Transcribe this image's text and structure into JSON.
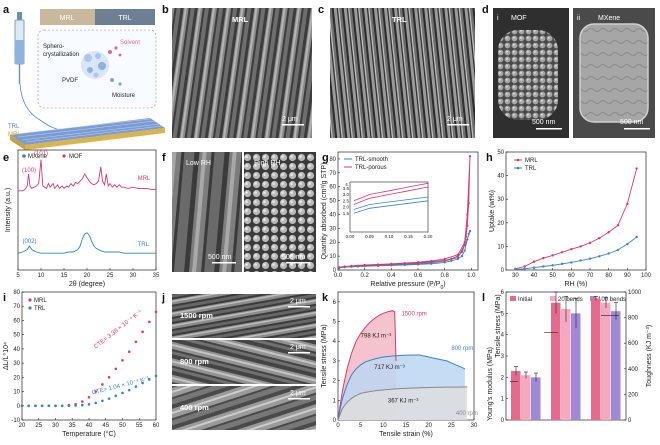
{
  "panels": {
    "a": {
      "label": "a",
      "strip_labels": [
        "MRL",
        "TRL"
      ],
      "process_label_1": "Sphero-",
      "process_label_2": "crystallization",
      "polymer": "PVDF",
      "solvent": "Solvent",
      "moisture": "Moisture",
      "layer_top": "TRL",
      "layer_bottom": "MRL",
      "colors": {
        "mrl": "#c8a23c",
        "trl": "#5a7ec8",
        "solvent": "#d46aa0"
      }
    },
    "b": {
      "label": "b",
      "title": "MRL",
      "scale": "2 μm"
    },
    "c": {
      "label": "c",
      "title": "TRL",
      "scale": "2 μm"
    },
    "d": {
      "label": "d",
      "sub_i": "i",
      "sub_ii": "ii",
      "title_i": "MOF",
      "title_ii": "MXene",
      "scale_i": "500 nm",
      "scale_ii": "500 nm"
    },
    "f": {
      "label": "f",
      "title_left": "Low RH",
      "title_right": "High RH",
      "scale_left": "500 nm",
      "scale_right": "500 nm"
    },
    "j": {
      "label": "j",
      "rows": [
        "1500 rpm",
        "800 rpm",
        "400 rpm"
      ],
      "scales": [
        "2 μm",
        "2 μm",
        "2 μm"
      ]
    }
  },
  "chart_data": [
    {
      "panel": "e",
      "type": "line",
      "xlabel": "2θ (degree)",
      "ylabel": "Intensity (a.u.)",
      "xlim": [
        5,
        35
      ],
      "xticks": [
        5,
        10,
        15,
        20,
        25,
        30,
        35
      ],
      "legend": [
        "MXene",
        "MOF"
      ],
      "legend_colors": [
        "#3b82c4",
        "#d63a6a"
      ],
      "series": [
        {
          "name": "MRL",
          "color": "#d63a6a",
          "x": [
            5,
            6,
            6.5,
            7,
            7.3,
            7.6,
            8,
            8.5,
            9,
            9.5,
            10,
            10.4,
            10.8,
            11.2,
            11.6,
            12,
            12.6,
            13,
            13.6,
            14,
            14.6,
            15,
            15.6,
            16,
            16.5,
            17,
            17.5,
            18,
            18.5,
            19,
            19.5,
            20,
            20.5,
            21,
            21.5,
            22,
            22.5,
            23,
            23.4,
            23.8,
            24.2,
            24.6,
            25,
            25.5,
            26,
            26.5,
            27,
            27.5,
            28,
            29,
            30,
            31,
            32,
            33,
            34,
            35
          ],
          "y": [
            0.66,
            0.66,
            0.67,
            0.7,
            0.8,
            0.7,
            0.68,
            0.69,
            0.7,
            0.72,
            0.92,
            0.7,
            0.69,
            0.68,
            0.72,
            0.69,
            0.72,
            0.68,
            0.71,
            0.68,
            0.7,
            0.68,
            0.7,
            0.69,
            0.72,
            0.7,
            0.73,
            0.72,
            0.74,
            0.76,
            0.8,
            0.77,
            0.74,
            0.72,
            0.71,
            0.72,
            0.74,
            0.86,
            0.74,
            0.71,
            0.8,
            0.7,
            0.72,
            0.69,
            0.71,
            0.69,
            0.71,
            0.69,
            0.69,
            0.68,
            0.69,
            0.68,
            0.68,
            0.68,
            0.67,
            0.67
          ]
        },
        {
          "name": "TRL",
          "color": "#3b82c4",
          "x": [
            5,
            6,
            7,
            7.5,
            8,
            8.5,
            9,
            10,
            11,
            12,
            13,
            14,
            15,
            16,
            17,
            18,
            18.5,
            19,
            19.5,
            20,
            20.5,
            21,
            21.5,
            22,
            23,
            24,
            25,
            26,
            27,
            28,
            29,
            30,
            31,
            32,
            33,
            34,
            35
          ],
          "y": [
            0.14,
            0.15,
            0.17,
            0.2,
            0.17,
            0.16,
            0.15,
            0.14,
            0.14,
            0.14,
            0.14,
            0.14,
            0.14,
            0.15,
            0.15,
            0.17,
            0.2,
            0.26,
            0.3,
            0.31,
            0.29,
            0.24,
            0.2,
            0.18,
            0.16,
            0.15,
            0.15,
            0.15,
            0.15,
            0.14,
            0.14,
            0.14,
            0.14,
            0.14,
            0.14,
            0.14,
            0.14
          ]
        }
      ],
      "series_labels": [
        "MRL",
        "TRL"
      ],
      "annotations": [
        {
          "text": "(101)",
          "x": 10,
          "y": 0.94,
          "color": "#d63a6a"
        },
        {
          "text": "(100)",
          "x": 7.4,
          "y": 0.8,
          "color": "#d63a6a"
        },
        {
          "text": "(002)",
          "x": 7.5,
          "y": 0.21,
          "color": "#3b82c4"
        }
      ]
    },
    {
      "panel": "g",
      "type": "line",
      "xlabel": "Relative pressure (P/P",
      "xlabel_sub": "0",
      "xlabel_end": ")",
      "ylabel": "Quantity absorbed (cm³/g STP)",
      "xlim": [
        0,
        1.05
      ],
      "ylim": [
        0,
        85
      ],
      "xticks": [
        0.0,
        0.2,
        0.4,
        0.6,
        0.8,
        1.0
      ],
      "yticks": [
        0,
        10,
        20,
        30,
        40,
        50,
        60,
        70,
        80
      ],
      "legend": [
        "TRL-smooth",
        "TRL-porous"
      ],
      "series": [
        {
          "name": "TRL-smooth",
          "color": "#3b82c4",
          "x": [
            0.01,
            0.05,
            0.1,
            0.15,
            0.2,
            0.3,
            0.4,
            0.5,
            0.6,
            0.7,
            0.8,
            0.85,
            0.9,
            0.93,
            0.95,
            0.97,
            0.98,
            0.99,
            0.99,
            0.97,
            0.9,
            0.8,
            0.7,
            0.6,
            0.5,
            0.4,
            0.3,
            0.2,
            0.1
          ],
          "y": [
            1.5,
            2,
            2.3,
            2.5,
            2.7,
            3,
            3.3,
            3.6,
            4,
            4.5,
            5.5,
            6.5,
            8,
            10,
            14,
            22,
            26,
            28,
            28,
            22,
            9,
            6.5,
            5.2,
            4.5,
            4,
            3.6,
            3.3,
            3,
            2.5
          ]
        },
        {
          "name": "TRL-porous",
          "color": "#d63a6a",
          "x": [
            0.01,
            0.05,
            0.1,
            0.15,
            0.2,
            0.3,
            0.4,
            0.5,
            0.6,
            0.7,
            0.8,
            0.85,
            0.9,
            0.93,
            0.95,
            0.96,
            0.97,
            0.98,
            0.99,
            0.99,
            0.97,
            0.95,
            0.9,
            0.8,
            0.7,
            0.6,
            0.5,
            0.4,
            0.3,
            0.2,
            0.1
          ],
          "y": [
            2,
            2.5,
            2.8,
            3,
            3.2,
            3.6,
            4,
            4.5,
            5,
            5.8,
            7,
            8,
            10,
            13,
            18,
            24,
            32,
            48,
            82,
            82,
            40,
            20,
            11,
            8,
            6.5,
            5.6,
            5,
            4.5,
            4,
            3.6,
            3
          ]
        }
      ],
      "inset": {
        "xlim": [
          0,
          0.2
        ],
        "ylim": [
          0,
          4
        ],
        "xticks": [
          0.0,
          0.05,
          0.1,
          0.15,
          0.2
        ],
        "yticks": [
          1.5,
          2.0,
          2.5,
          3.0,
          3.5
        ],
        "extra_label": "4.",
        "series": [
          {
            "color": "#3b82c4",
            "x": [
              0.01,
              0.05,
              0.1,
              0.15,
              0.2
            ],
            "y": [
              1.5,
              1.9,
              2.1,
              2.3,
              2.5
            ]
          },
          {
            "color": "#3b82c4",
            "x": [
              0.01,
              0.05,
              0.1,
              0.15,
              0.2
            ],
            "y": [
              1.8,
              2.2,
              2.4,
              2.6,
              2.8
            ]
          },
          {
            "color": "#d63a6a",
            "x": [
              0.01,
              0.05,
              0.1,
              0.15,
              0.2
            ],
            "y": [
              2.2,
              2.7,
              3.0,
              3.3,
              3.6
            ]
          },
          {
            "color": "#d63a6a",
            "x": [
              0.01,
              0.05,
              0.1,
              0.15,
              0.2
            ],
            "y": [
              2.5,
              3.0,
              3.3,
              3.6,
              3.9
            ]
          }
        ]
      }
    },
    {
      "panel": "h",
      "type": "line",
      "xlabel": "RH (%)",
      "ylabel": "Uptake (wt%)",
      "xlim": [
        25,
        100
      ],
      "ylim": [
        0,
        50
      ],
      "xticks": [
        30,
        40,
        50,
        60,
        70,
        80,
        90,
        100
      ],
      "yticks": [
        0,
        10,
        20,
        30,
        40,
        50
      ],
      "legend": [
        "MRL",
        "TRL"
      ],
      "series": [
        {
          "name": "MRL",
          "color": "#d63a6a",
          "x": [
            30,
            35,
            40,
            45,
            50,
            55,
            60,
            65,
            70,
            75,
            80,
            85,
            90,
            95
          ],
          "y": [
            0.5,
            1.5,
            3.5,
            5,
            6.2,
            7.5,
            8.8,
            10,
            11.5,
            13.5,
            16,
            19,
            28,
            43
          ]
        },
        {
          "name": "TRL",
          "color": "#3b82c4",
          "x": [
            30,
            35,
            40,
            45,
            50,
            55,
            60,
            65,
            70,
            75,
            80,
            85,
            90,
            95
          ],
          "y": [
            0.2,
            0.5,
            1,
            1.5,
            2,
            2.6,
            3.2,
            4,
            4.8,
            5.8,
            7,
            8.5,
            11,
            14
          ]
        }
      ]
    },
    {
      "panel": "i",
      "type": "scatter",
      "xlabel": "Temperature (°C)",
      "ylabel": "ΔL/L⁰10⁴",
      "xlim": [
        20,
        60
      ],
      "ylim": [
        -10,
        80
      ],
      "xticks": [
        20,
        25,
        30,
        35,
        40,
        45,
        50,
        55,
        60
      ],
      "yticks": [
        -10,
        0,
        10,
        20,
        30,
        40,
        50,
        60,
        70,
        80
      ],
      "legend": [
        "MRL",
        "TRL"
      ],
      "series": [
        {
          "name": "MRL",
          "color": "#d63a6a",
          "x": [
            20,
            22,
            24,
            26,
            28,
            30,
            32,
            34,
            36,
            38,
            40,
            42,
            44,
            46,
            48,
            50,
            52,
            54,
            56,
            58,
            60
          ],
          "y": [
            0,
            0,
            0,
            0,
            0,
            0,
            0,
            0.5,
            1,
            3,
            6,
            10,
            15,
            20,
            26,
            32,
            38,
            45,
            52,
            59,
            66
          ]
        },
        {
          "name": "TRL",
          "color": "#3b82c4",
          "x": [
            20,
            22,
            24,
            26,
            28,
            30,
            32,
            34,
            36,
            38,
            40,
            42,
            44,
            46,
            48,
            50,
            52,
            54,
            56,
            58,
            60
          ],
          "y": [
            0,
            0,
            0,
            0,
            0,
            0,
            0,
            0,
            0.2,
            0.5,
            1,
            2,
            3.5,
            5,
            7,
            9,
            11,
            13.5,
            16,
            18.5,
            21
          ]
        }
      ],
      "annotations": [
        {
          "text": "CTE= 3.38 × 10⁻⁴ K⁻¹",
          "color": "#d63a6a"
        },
        {
          "text": "CTE= 1.04 × 10⁻⁴ K⁻¹",
          "color": "#3b82c4"
        }
      ]
    },
    {
      "panel": "k",
      "type": "area",
      "xlabel": "Tensile strain (%)",
      "ylabel": "Tensile stress (MPa)",
      "xlim": [
        0,
        30
      ],
      "ylim": [
        0,
        6.5
      ],
      "xticks": [
        0,
        5,
        10,
        15,
        20,
        25,
        30
      ],
      "yticks": [
        0,
        1,
        2,
        3,
        4,
        5,
        6
      ],
      "series": [
        {
          "name": "1500 rpm",
          "color": "#d63a6a",
          "fill": "#f2b8c6",
          "x": [
            0,
            0.5,
            1,
            2,
            3,
            4,
            5,
            6,
            7,
            8,
            9,
            10,
            11,
            12,
            12.5,
            12.8
          ],
          "y": [
            0,
            0.8,
            1.5,
            2.6,
            3.4,
            4,
            4.4,
            4.7,
            4.95,
            5.15,
            5.3,
            5.42,
            5.5,
            5.55,
            5.5,
            3.0
          ]
        },
        {
          "name": "800 rpm",
          "color": "#3b82c4",
          "fill": "#bcd6f2",
          "x": [
            0,
            0.5,
            1,
            2,
            3,
            4,
            5,
            6,
            8,
            10,
            12,
            14,
            16,
            18,
            20,
            22,
            24,
            26,
            28
          ],
          "y": [
            0,
            0.6,
            1.1,
            1.8,
            2.3,
            2.6,
            2.8,
            2.95,
            3.1,
            3.2,
            3.25,
            3.28,
            3.3,
            3.3,
            3.2,
            3.1,
            3.0,
            2.8,
            2.6
          ]
        },
        {
          "name": "400 rpm",
          "color": "#888888",
          "fill": "#dddddd",
          "x": [
            0,
            0.5,
            1,
            2,
            3,
            4,
            5,
            6,
            8,
            10,
            12,
            14,
            16,
            18,
            20,
            22,
            24,
            26,
            28.5
          ],
          "y": [
            0,
            0.3,
            0.6,
            0.9,
            1.1,
            1.25,
            1.35,
            1.4,
            1.48,
            1.53,
            1.57,
            1.6,
            1.62,
            1.64,
            1.65,
            1.66,
            1.67,
            1.67,
            1.68
          ]
        }
      ],
      "labels": [
        "1500 rpm",
        "800 rpm",
        "400 rpm"
      ],
      "toughness": [
        "798 KJ m⁻³",
        "717 KJ m⁻³",
        "367 KJ m⁻³"
      ]
    },
    {
      "panel": "l",
      "type": "bar",
      "legend": [
        "Initial",
        "20 bends",
        "100 bends"
      ],
      "legend_colors": [
        "#e56b8e",
        "#f4a9c0",
        "#a08ad8"
      ],
      "ylabel_left": "Young's modulus (MPa)",
      "ylabel_mid": "Tensile stress (MPa)",
      "ylabel_right": "Toughness (KJ m⁻³)",
      "yticks_left": [
        0,
        1,
        2,
        3,
        4,
        5,
        6
      ],
      "yticks_right": [
        0,
        200,
        400,
        600,
        800,
        1000
      ],
      "groups": [
        {
          "name": "Young's modulus",
          "values": [
            2.3,
            2.1,
            2.0
          ],
          "err": [
            0.2,
            0.15,
            0.2
          ]
        },
        {
          "name": "Tensile stress",
          "values": [
            5.5,
            5.2,
            5.0
          ],
          "err": [
            0.5,
            0.6,
            0.7
          ]
        },
        {
          "name": "Toughness",
          "values": [
            5.7,
            5.5,
            5.1
          ],
          "err": [
            0.1,
            0.25,
            0.4
          ]
        }
      ]
    }
  ]
}
